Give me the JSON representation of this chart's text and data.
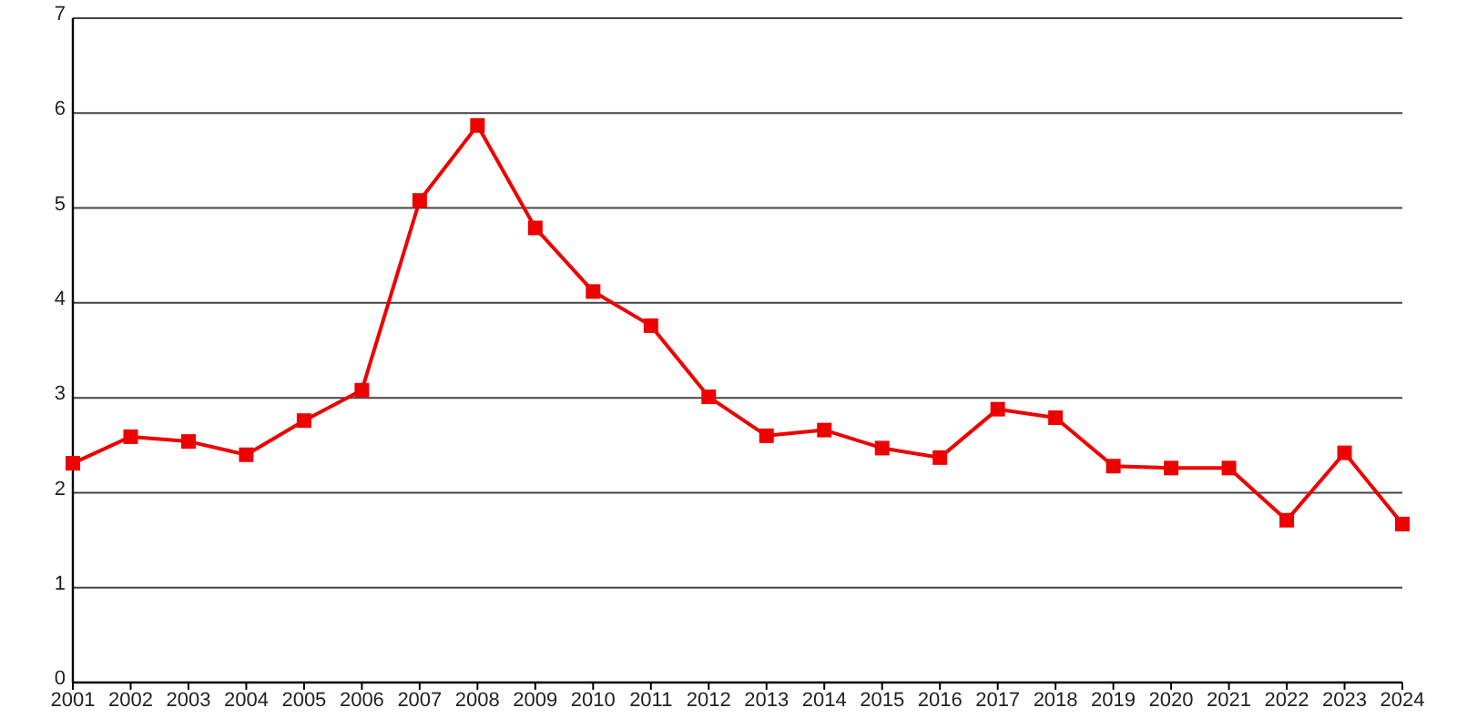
{
  "chart_data": {
    "type": "line",
    "categories": [
      "2001",
      "2002",
      "2003",
      "2004",
      "2005",
      "2006",
      "2007",
      "2008",
      "2009",
      "2010",
      "2011",
      "2012",
      "2013",
      "2014",
      "2015",
      "2016",
      "2017",
      "2018",
      "2019",
      "2020",
      "2021",
      "2022",
      "2023",
      "2024"
    ],
    "series": [
      {
        "color": "#ee0000",
        "values": [
          2.31,
          2.59,
          2.54,
          2.4,
          2.76,
          3.08,
          5.08,
          5.87,
          4.79,
          4.12,
          3.76,
          3.01,
          2.6,
          2.66,
          2.47,
          2.37,
          2.88,
          2.79,
          2.28,
          2.26,
          2.26,
          1.71,
          2.42,
          1.67
        ]
      }
    ],
    "ylim": [
      0,
      7
    ],
    "yticks": [
      0,
      1,
      2,
      3,
      4,
      5,
      6,
      7
    ],
    "grid": "y",
    "marker": "square",
    "line_style": "solid"
  }
}
